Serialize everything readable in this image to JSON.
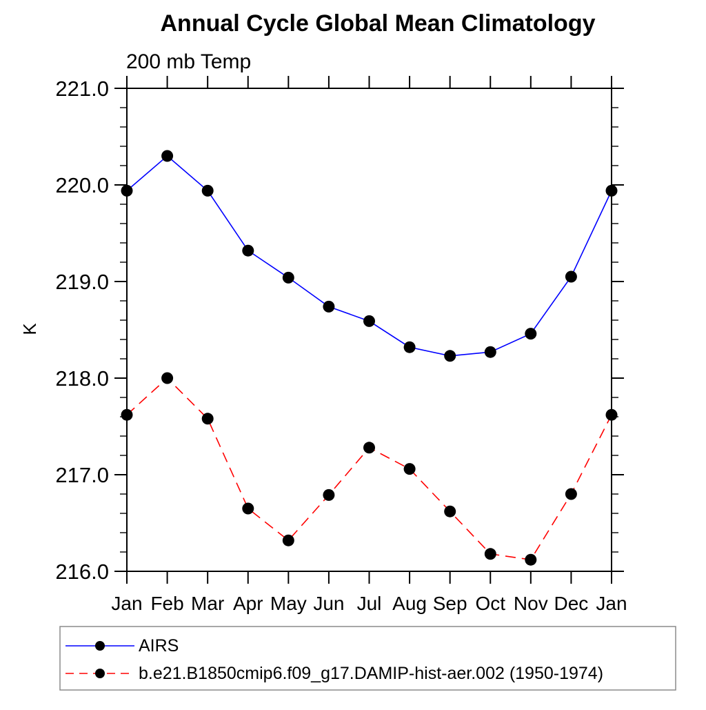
{
  "title": "Annual Cycle Global Mean Climatology",
  "subtitle": "200 mb Temp",
  "y_axis_label": "K",
  "colors": {
    "background": "#ffffff",
    "axis": "#000000",
    "marker": "#000000",
    "series1": "#0000ff",
    "series2": "#ff0000",
    "legend_border": "#8a8a8a"
  },
  "legend": {
    "entries": [
      "AIRS",
      "b.e21.B1850cmip6.f09_g17.DAMIP-hist-aer.002 (1950-1974)"
    ]
  },
  "chart_data": {
    "type": "line",
    "title": "Annual Cycle Global Mean Climatology",
    "subtitle": "200 mb Temp",
    "xlabel": "",
    "ylabel": "K",
    "categories": [
      "Jan",
      "Feb",
      "Mar",
      "Apr",
      "May",
      "Jun",
      "Jul",
      "Aug",
      "Sep",
      "Oct",
      "Nov",
      "Dec",
      "Jan"
    ],
    "ylim": [
      216.0,
      221.0
    ],
    "ytick_major_step": 1.0,
    "ytick_minor_step": 0.2,
    "ytick_labels": [
      "216.0",
      "217.0",
      "218.0",
      "219.0",
      "220.0",
      "221.0"
    ],
    "grid": false,
    "legend_position": "bottom-left-box",
    "series": [
      {
        "name": "AIRS",
        "color": "#0000ff",
        "line_style": "solid",
        "marker": "filled-circle",
        "marker_color": "#000000",
        "values": [
          219.94,
          220.3,
          219.94,
          219.32,
          219.04,
          218.74,
          218.59,
          218.32,
          218.23,
          218.27,
          218.46,
          219.05,
          219.94
        ]
      },
      {
        "name": "b.e21.B1850cmip6.f09_g17.DAMIP-hist-aer.002 (1950-1974)",
        "color": "#ff0000",
        "line_style": "dashed",
        "marker": "filled-circle",
        "marker_color": "#000000",
        "values": [
          217.62,
          218.0,
          217.58,
          216.65,
          216.32,
          216.79,
          217.28,
          217.06,
          216.62,
          216.18,
          216.12,
          216.8,
          217.62
        ]
      }
    ]
  }
}
